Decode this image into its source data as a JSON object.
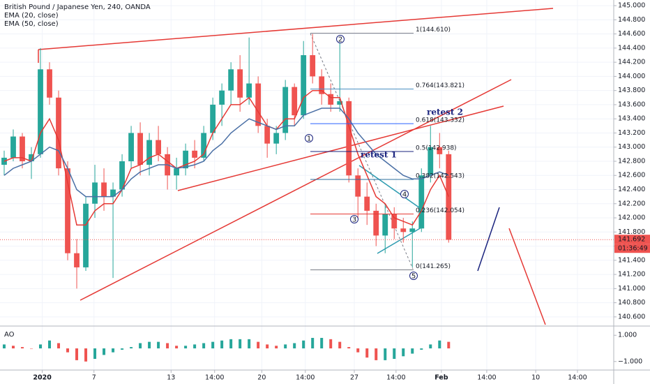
{
  "chart_data": {
    "type": "candlestick",
    "title": "British Pound / Japanese Yen, 240, OANDA",
    "xlim": [
      -0.46,
      67.2
    ],
    "xticks": [
      {
        "value": 4.2,
        "label": "2020"
      },
      {
        "value": 9.9,
        "label": "7"
      },
      {
        "value": 18.4,
        "label": "13"
      },
      {
        "value": 23.2,
        "label": "14:00"
      },
      {
        "value": 28.4,
        "label": "20"
      },
      {
        "value": 33.2,
        "label": "14:00"
      },
      {
        "value": 38.6,
        "label": "27"
      },
      {
        "value": 43.2,
        "label": "14:00"
      },
      {
        "value": 48.2,
        "label": "Feb"
      },
      {
        "value": 53.2,
        "label": "14:00"
      },
      {
        "value": 58.6,
        "label": "10"
      },
      {
        "value": 63.2,
        "label": "14:00"
      }
    ],
    "ylim": [
      140.49,
      145.08
    ],
    "yticks": [
      {
        "value": 140.6,
        "label": "140.600"
      },
      {
        "value": 140.8,
        "label": "140.800"
      },
      {
        "value": 141,
        "label": "141.000"
      },
      {
        "value": 141.2,
        "label": "141.200"
      },
      {
        "value": 141.4,
        "label": "141.400"
      },
      {
        "value": 141.6,
        "label": "141.600"
      },
      {
        "value": 141.8,
        "label": "141.800"
      },
      {
        "value": 142,
        "label": "142.000"
      },
      {
        "value": 142.2,
        "label": "142.200"
      },
      {
        "value": 142.4,
        "label": "142.400"
      },
      {
        "value": 142.6,
        "label": "142.600"
      },
      {
        "value": 142.8,
        "label": "142.800"
      },
      {
        "value": 143,
        "label": "143.000"
      },
      {
        "value": 143.2,
        "label": "143.200"
      },
      {
        "value": 143.4,
        "label": "143.400"
      },
      {
        "value": 143.6,
        "label": "143.600"
      },
      {
        "value": 143.8,
        "label": "143.800"
      },
      {
        "value": 144,
        "label": "144.000"
      },
      {
        "value": 144.2,
        "label": "144.200"
      },
      {
        "value": 144.4,
        "label": "144.400"
      },
      {
        "value": 144.6,
        "label": "144.600"
      },
      {
        "value": 144.8,
        "label": "144.800"
      },
      {
        "value": 145,
        "label": "145.000"
      }
    ],
    "grid": true,
    "up_color": "#26a69a",
    "down_color": "#ef5350",
    "open": [
      142.75,
      142.85,
      143.15,
      142.8,
      142.9,
      144.1,
      143.7,
      142.7,
      141.5,
      141.3,
      142.2,
      142.5,
      142.3,
      142.4,
      142.8,
      143.2,
      142.75,
      143.1,
      142.9,
      142.6,
      142.7,
      142.95,
      142.85,
      143.2,
      143.6,
      143.8,
      144.1,
      143.7,
      143.9,
      143.3,
      143.05,
      143.2,
      143.85,
      143.45,
      144.3,
      144.0,
      143.75,
      143.6,
      143.65,
      142.6,
      142.3,
      142.1,
      141.75,
      142.05,
      141.85,
      141.8,
      141.85,
      142.6,
      143.0,
      142.9
    ],
    "high": [
      142.95,
      143.25,
      143.2,
      143.0,
      144.4,
      144.2,
      143.8,
      142.8,
      141.7,
      142.3,
      142.75,
      142.7,
      142.5,
      142.9,
      143.3,
      143.35,
      143.2,
      143.3,
      143.0,
      142.85,
      143.05,
      143.1,
      143.3,
      143.7,
      143.9,
      144.2,
      144.3,
      144.55,
      144.0,
      143.4,
      143.3,
      143.95,
      143.9,
      144.5,
      144.6,
      144.1,
      143.9,
      144.5,
      143.7,
      142.7,
      142.5,
      142.2,
      142.2,
      142.15,
      142.0,
      141.95,
      142.7,
      143.3,
      143.2,
      142.95
    ],
    "low": [
      142.6,
      142.8,
      142.7,
      142.55,
      142.85,
      143.6,
      142.6,
      141.4,
      141.0,
      141.25,
      142.0,
      142.1,
      141.15,
      142.3,
      142.7,
      142.6,
      142.6,
      142.8,
      142.4,
      142.4,
      142.6,
      142.7,
      142.8,
      143.1,
      143.3,
      143.6,
      143.5,
      143.6,
      143.2,
      142.85,
      142.9,
      143.1,
      143.3,
      143.4,
      143.9,
      143.6,
      143.5,
      143.5,
      142.5,
      142.0,
      141.9,
      141.6,
      141.5,
      141.7,
      141.65,
      141.3,
      141.8,
      142.5,
      142.7,
      141.65
    ],
    "close": [
      142.85,
      143.15,
      142.8,
      142.9,
      144.1,
      143.7,
      142.7,
      141.5,
      141.3,
      142.2,
      142.5,
      142.3,
      142.4,
      142.8,
      143.2,
      142.75,
      143.1,
      142.9,
      142.6,
      142.7,
      142.95,
      142.85,
      143.2,
      143.6,
      143.8,
      144.1,
      143.7,
      143.9,
      143.3,
      143.05,
      143.2,
      143.85,
      143.45,
      144.3,
      144.0,
      143.75,
      143.6,
      143.65,
      142.6,
      142.3,
      142.1,
      141.75,
      142.05,
      141.85,
      141.8,
      141.85,
      142.6,
      143.0,
      142.9,
      141.69
    ],
    "series": [
      {
        "name": "EMA (20, close)",
        "color": "#e53935",
        "values": [
          142.8,
          142.85,
          142.85,
          142.8,
          143.2,
          143.4,
          143.1,
          142.5,
          141.9,
          141.9,
          142.1,
          142.2,
          142.2,
          142.4,
          142.7,
          142.75,
          142.85,
          142.9,
          142.8,
          142.7,
          142.75,
          142.8,
          142.9,
          143.2,
          143.4,
          143.6,
          143.6,
          143.7,
          143.5,
          143.3,
          143.25,
          143.4,
          143.4,
          143.7,
          143.8,
          143.8,
          143.7,
          143.7,
          143.3,
          142.9,
          142.6,
          142.3,
          142.2,
          142.0,
          141.95,
          141.9,
          142.1,
          142.4,
          142.6,
          142.3
        ]
      },
      {
        "name": "EMA (50, close)",
        "color": "#4a6fa5",
        "values": [
          142.6,
          142.7,
          142.75,
          142.8,
          142.9,
          143.0,
          142.95,
          142.7,
          142.4,
          142.3,
          142.3,
          142.3,
          142.3,
          142.4,
          142.55,
          142.65,
          142.7,
          142.75,
          142.75,
          142.7,
          142.72,
          142.75,
          142.8,
          142.95,
          143.05,
          143.2,
          143.3,
          143.4,
          143.35,
          143.3,
          143.25,
          143.3,
          143.3,
          143.45,
          143.5,
          143.55,
          143.55,
          143.55,
          143.4,
          143.2,
          143.05,
          142.9,
          142.8,
          142.7,
          142.6,
          142.55,
          142.55,
          142.6,
          142.65,
          142.6
        ]
      }
    ],
    "last_price": {
      "value": 141.692,
      "label": "141.692"
    },
    "countdown": "01:36:49",
    "fib_levels": [
      {
        "value": 144.61,
        "label": "1(144.610)",
        "color": "#787b86"
      },
      {
        "value": 143.821,
        "label": "0.764(143.821)",
        "color": "#4a90c2"
      },
      {
        "value": 143.332,
        "label": "0.618(143.332)",
        "color": "#2962ff"
      },
      {
        "value": 142.938,
        "label": "0.5(142.938)",
        "color": "#1a237e"
      },
      {
        "value": 142.543,
        "label": "0.382(142.543)",
        "color": "#2a6e9c"
      },
      {
        "value": 142.054,
        "label": "0.236(142.054)",
        "color": "#e53935"
      },
      {
        "value": 141.265,
        "label": "0(141.265)",
        "color": "#787b86"
      }
    ],
    "waves": [
      "1",
      "2",
      "3",
      "4",
      "5"
    ],
    "annotations": [
      "retest 1",
      "retest 2"
    ],
    "ao": {
      "name": "AO",
      "ylim": [
        -1.65,
        1.65
      ],
      "yticks": [
        {
          "value": 1,
          "label": "1.000"
        },
        {
          "value": -1,
          "label": "−1.000"
        }
      ],
      "values": [
        0.3,
        0.2,
        0.1,
        0.0,
        0.3,
        0.6,
        0.4,
        -0.3,
        -0.9,
        -1.0,
        -0.8,
        -0.5,
        -0.3,
        -0.1,
        0.1,
        0.4,
        0.5,
        0.5,
        0.4,
        0.2,
        0.2,
        0.3,
        0.4,
        0.5,
        0.6,
        0.7,
        0.7,
        0.7,
        0.5,
        0.3,
        0.2,
        0.3,
        0.4,
        0.6,
        0.8,
        0.8,
        0.7,
        0.5,
        0.1,
        -0.3,
        -0.7,
        -0.9,
        -0.9,
        -0.8,
        -0.6,
        -0.4,
        -0.1,
        0.3,
        0.6,
        0.5
      ]
    }
  }
}
